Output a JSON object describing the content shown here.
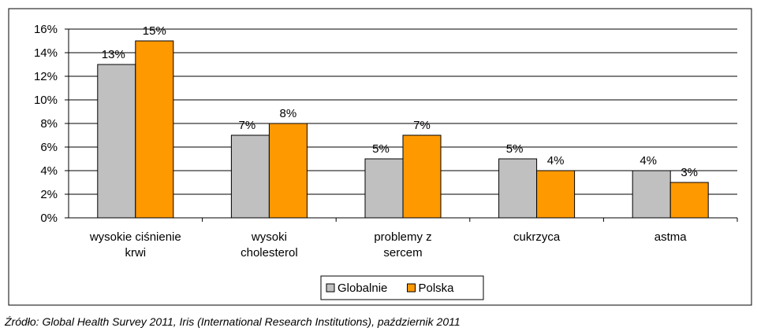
{
  "chart_data": {
    "type": "bar",
    "title": "",
    "xlabel": "",
    "ylabel": "",
    "ylim": [
      0,
      16
    ],
    "yticks": [
      0,
      2,
      4,
      6,
      8,
      10,
      12,
      14,
      16
    ],
    "ytick_suffix": "%",
    "grid": true,
    "legend_position": "bottom",
    "categories": [
      [
        "wysokie ciśnienie",
        "krwi"
      ],
      [
        "wysoki",
        "cholesterol"
      ],
      [
        "problemy z",
        "sercem"
      ],
      [
        "cukrzyca"
      ],
      [
        "astma"
      ]
    ],
    "series": [
      {
        "name": "Globalnie",
        "color": "#c0c0c0",
        "values": [
          13,
          7,
          5,
          5,
          4
        ],
        "labels": [
          "13%",
          "7%",
          "5%",
          "5%",
          "4%"
        ]
      },
      {
        "name": "Polska",
        "color": "#ff9900",
        "values": [
          15,
          8,
          7,
          4,
          3
        ],
        "labels": [
          "15%",
          "8%",
          "7%",
          "4%",
          "3%"
        ]
      }
    ]
  },
  "source": "Źródło: Global Health Survey 2011, Iris (International Research Institutions), październik 2011"
}
